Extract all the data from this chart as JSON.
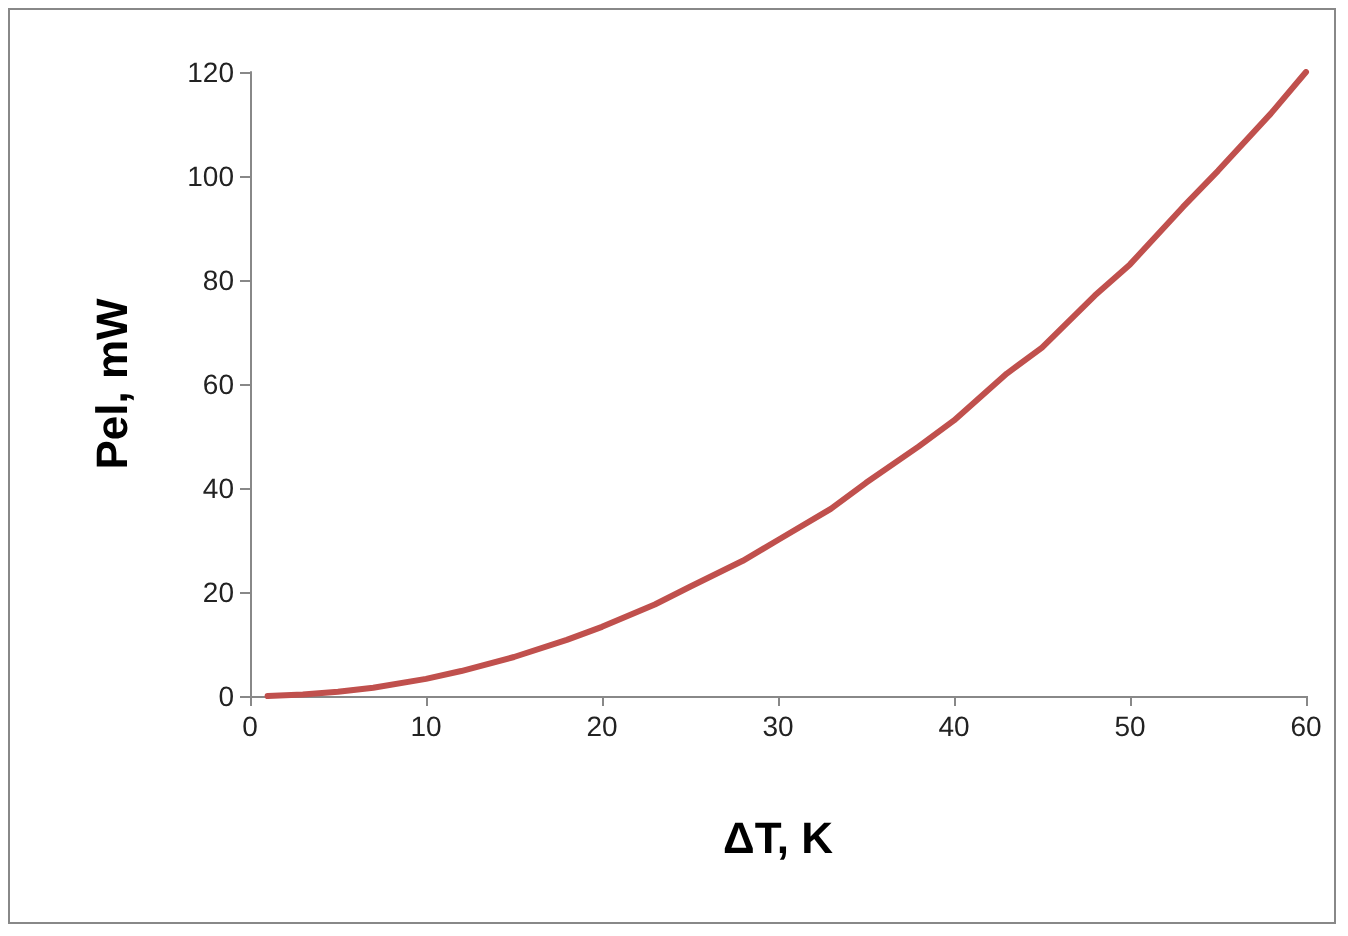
{
  "chart_data": {
    "type": "line",
    "xlabel": "ΔT, K",
    "ylabel": "Pel, mW",
    "x": [
      1,
      3,
      5,
      7,
      10,
      12,
      15,
      18,
      20,
      23,
      25,
      28,
      30,
      33,
      35,
      38,
      40,
      43,
      45,
      48,
      50,
      53,
      55,
      58,
      60
    ],
    "series": [
      {
        "color": "#c0504d",
        "values": [
          0,
          0.3,
          0.8,
          1.6,
          3.3,
          4.8,
          7.5,
          10.8,
          13.3,
          17.6,
          21,
          26,
          30,
          36,
          41,
          48,
          53,
          62,
          67,
          77,
          83,
          94,
          101,
          112,
          120
        ]
      }
    ],
    "xlim": [
      0,
      60
    ],
    "xticks": [
      0,
      10,
      20,
      30,
      40,
      50,
      60
    ],
    "ylim": [
      0,
      120
    ],
    "yticks": [
      0,
      20,
      40,
      60,
      80,
      100,
      120
    ],
    "grid": false,
    "marker": "none",
    "line_style": "solid"
  }
}
